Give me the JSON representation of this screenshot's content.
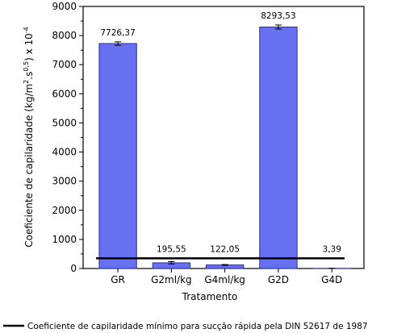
{
  "chart_data": {
    "type": "bar",
    "categories": [
      "GR",
      "G2ml/kg",
      "G4ml/kg",
      "G2D",
      "G4D"
    ],
    "values": [
      7726.37,
      195.55,
      122.05,
      8293.53,
      3.39
    ],
    "data_labels": [
      "7726,37",
      "195,55",
      "122,05",
      "8293,53",
      "3,39"
    ],
    "error": [
      60,
      40,
      15,
      70,
      2
    ],
    "xlabel": "Tratamento",
    "ylabel_parts": {
      "a": "Coeficiente de capilaridade (kg/m",
      "a_sup": "2",
      "b": ".s",
      "b_sup": "0,5",
      "c": ") x 10",
      "c_sup": "-4"
    },
    "ylim": [
      0,
      9000
    ],
    "yticks": [
      "0",
      "1000",
      "2000",
      "3000",
      "4000",
      "5000",
      "6000",
      "7000",
      "8000",
      "9000"
    ],
    "reference_value": 350,
    "legend": "Coeficiente de capilaridade mínimo para sucção rápida pela DIN 52617 de 1987",
    "colors": {
      "bar": "#6670f0",
      "bar_edge": "#2e3390",
      "reference": "#000000"
    }
  }
}
